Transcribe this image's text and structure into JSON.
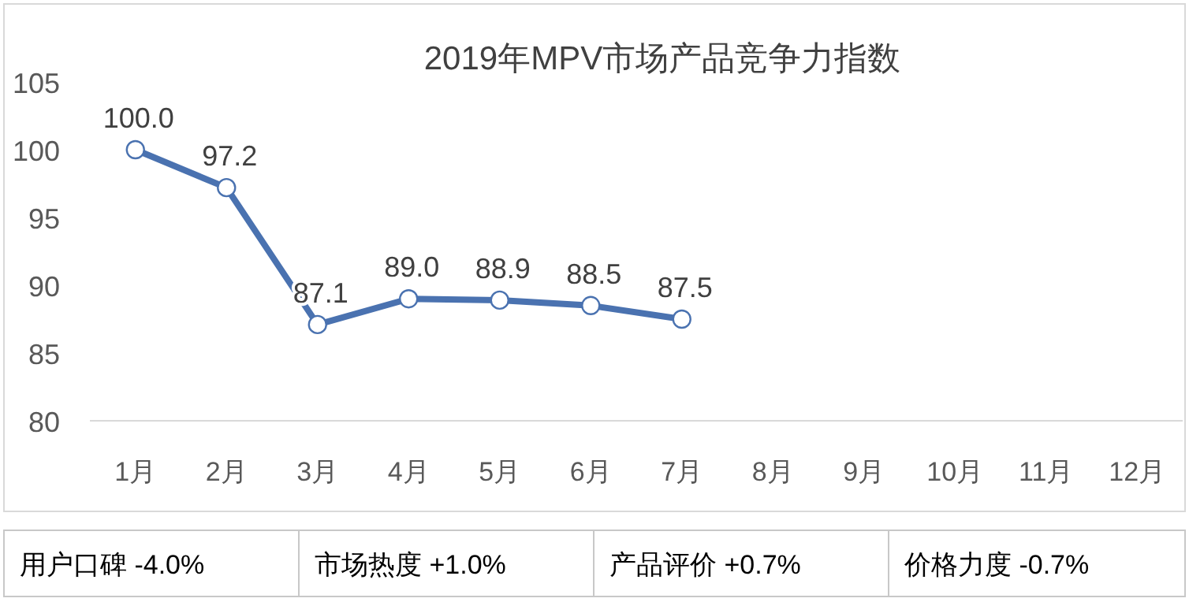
{
  "chart_data": {
    "type": "line",
    "title": "2019年MPV市场产品竞争力指数",
    "categories": [
      "1月",
      "2月",
      "3月",
      "4月",
      "5月",
      "6月",
      "7月",
      "8月",
      "9月",
      "10月",
      "11月",
      "12月"
    ],
    "series": [
      {
        "color": "#4a72b0",
        "values": [
          100.0,
          97.2,
          87.1,
          89.0,
          88.9,
          88.5,
          87.5,
          null,
          null,
          null,
          null,
          null
        ],
        "value_labels": [
          "100.0",
          "97.2",
          "87.1",
          "89.0",
          "88.9",
          "88.5",
          "87.5",
          null,
          null,
          null,
          null,
          null
        ]
      }
    ],
    "ylim": [
      80,
      105
    ],
    "yticks": [
      80,
      85,
      90,
      95,
      100,
      105
    ],
    "grid": false,
    "marker": "circle",
    "line_style": "solid",
    "annotations": [
      "用户口碑 -4.0%",
      "市场热度 +1.0%",
      "产品评价 +0.7%",
      "价格力度 -0.7%"
    ]
  }
}
